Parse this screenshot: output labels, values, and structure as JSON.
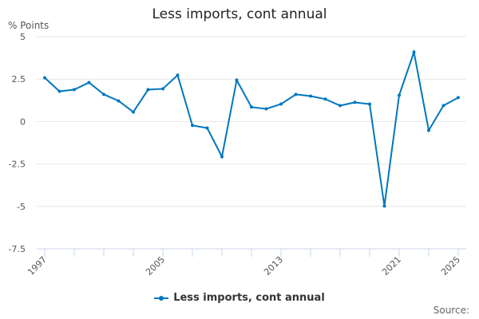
{
  "chart_data": {
    "type": "line",
    "title": "Less imports, cont annual",
    "ylabel": "% Points",
    "xlabel": "",
    "ylim": [
      -7.5,
      5
    ],
    "yticks": [
      5,
      2.5,
      0,
      -2.5,
      -5,
      -7.5
    ],
    "ytick_labels": [
      "5",
      "2.5",
      "0",
      "-2.5",
      "-5",
      "-7.5"
    ],
    "xtick_labels": [
      "1997",
      "2005",
      "2013",
      "2021",
      "2025"
    ],
    "grid": true,
    "legend_position": "bottom",
    "x": [
      1997,
      1998,
      1999,
      2000,
      2001,
      2002,
      2003,
      2004,
      2005,
      2006,
      2007,
      2008,
      2009,
      2010,
      2011,
      2012,
      2013,
      2014,
      2015,
      2016,
      2017,
      2018,
      2019,
      2020,
      2021,
      2022,
      2023,
      2024,
      2025
    ],
    "series": [
      {
        "name": "Less imports, cont annual",
        "color": "#0077bd",
        "values": [
          2.58,
          1.78,
          1.88,
          2.3,
          1.6,
          1.22,
          0.56,
          1.88,
          1.93,
          2.73,
          -0.23,
          -0.38,
          -2.07,
          2.44,
          0.85,
          0.75,
          1.03,
          1.6,
          1.5,
          1.32,
          0.94,
          1.13,
          1.03,
          -4.98,
          1.55,
          4.09,
          -0.52,
          0.94,
          1.41
        ]
      }
    ]
  },
  "source_label": "Source:"
}
